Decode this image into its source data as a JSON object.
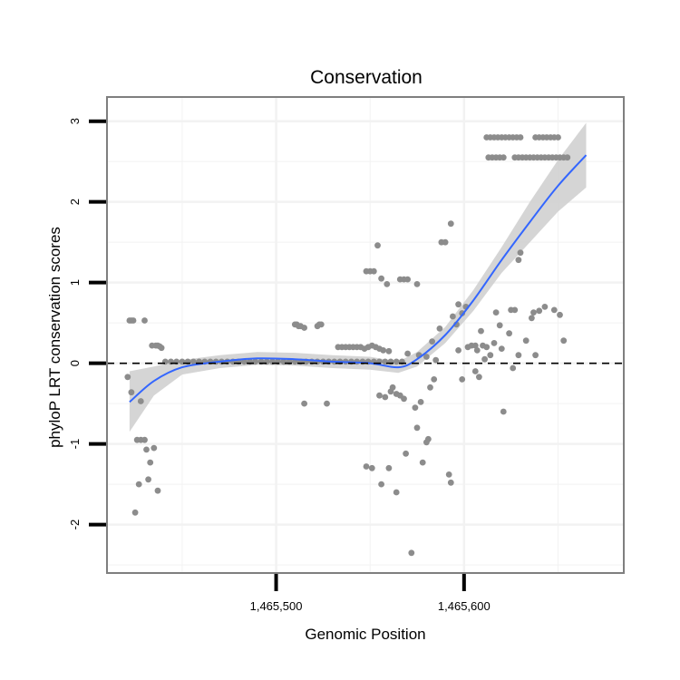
{
  "chart_data": {
    "type": "scatter",
    "title": "Conservation",
    "xlabel": "Genomic Position",
    "ylabel": "phyloP LRT conservation scores",
    "xlim": [
      1465410,
      1465685
    ],
    "ylim": [
      -2.6,
      3.3
    ],
    "x_ticks": [
      {
        "value": 1465500,
        "label": "1,465,500"
      },
      {
        "value": 1465600,
        "label": "1,465,600"
      }
    ],
    "y_ticks": [
      {
        "value": -2,
        "label": "-2"
      },
      {
        "value": -1,
        "label": "-1"
      },
      {
        "value": 0,
        "label": "0"
      },
      {
        "value": 1,
        "label": "1"
      },
      {
        "value": 2,
        "label": "2"
      },
      {
        "value": 3,
        "label": "3"
      }
    ],
    "x_minor_ticks": [
      1465450,
      1465550,
      1465650
    ],
    "y_minor_ticks": [
      -2.5,
      -1.5,
      -0.5,
      0.5,
      1.5,
      2.5
    ],
    "reference_line": {
      "y": 0,
      "style": "dashed"
    },
    "smooth": {
      "name": "Loess fit",
      "x": [
        1465422,
        1465435,
        1465450,
        1465470,
        1465490,
        1465510,
        1465530,
        1465550,
        1465565,
        1465575,
        1465590,
        1465605,
        1465620,
        1465635,
        1465650,
        1465665
      ],
      "y": [
        -0.48,
        -0.22,
        -0.05,
        0.02,
        0.06,
        0.05,
        0.02,
        0.0,
        -0.05,
        0.05,
        0.35,
        0.78,
        1.28,
        1.75,
        2.2,
        2.58
      ],
      "ci_lower": [
        -0.85,
        -0.4,
        -0.14,
        -0.06,
        -0.02,
        -0.03,
        -0.06,
        -0.08,
        -0.12,
        -0.04,
        0.25,
        0.65,
        1.12,
        1.5,
        1.88,
        2.18
      ],
      "ci_upper": [
        -0.1,
        -0.04,
        0.04,
        0.1,
        0.14,
        0.13,
        0.1,
        0.08,
        0.02,
        0.14,
        0.45,
        0.91,
        1.44,
        2.0,
        2.52,
        2.98
      ]
    },
    "points": [
      {
        "x": 1465421,
        "y": -0.17
      },
      {
        "x": 1465422,
        "y": 0.53
      },
      {
        "x": 1465423,
        "y": 0.53
      },
      {
        "x": 1465424,
        "y": 0.53
      },
      {
        "x": 1465423,
        "y": -0.36
      },
      {
        "x": 1465425,
        "y": -1.85
      },
      {
        "x": 1465426,
        "y": -0.95
      },
      {
        "x": 1465427,
        "y": -1.5
      },
      {
        "x": 1465428,
        "y": -0.47
      },
      {
        "x": 1465428,
        "y": -0.95
      },
      {
        "x": 1465430,
        "y": 0.53
      },
      {
        "x": 1465430,
        "y": -0.95
      },
      {
        "x": 1465431,
        "y": -1.07
      },
      {
        "x": 1465432,
        "y": -1.44
      },
      {
        "x": 1465433,
        "y": -1.23
      },
      {
        "x": 1465434,
        "y": 0.22
      },
      {
        "x": 1465435,
        "y": -1.05
      },
      {
        "x": 1465436,
        "y": 0.22
      },
      {
        "x": 1465437,
        "y": 0.22
      },
      {
        "x": 1465438,
        "y": 0.21
      },
      {
        "x": 1465439,
        "y": 0.19
      },
      {
        "x": 1465437,
        "y": -1.58
      },
      {
        "x": 1465441,
        "y": 0.02
      },
      {
        "x": 1465444,
        "y": 0.02
      },
      {
        "x": 1465447,
        "y": 0.02
      },
      {
        "x": 1465450,
        "y": 0.02
      },
      {
        "x": 1465453,
        "y": 0.02
      },
      {
        "x": 1465456,
        "y": 0.02
      },
      {
        "x": 1465459,
        "y": 0.02
      },
      {
        "x": 1465462,
        "y": 0.02
      },
      {
        "x": 1465465,
        "y": 0.02
      },
      {
        "x": 1465468,
        "y": 0.02
      },
      {
        "x": 1465471,
        "y": 0.02
      },
      {
        "x": 1465474,
        "y": 0.02
      },
      {
        "x": 1465477,
        "y": 0.02
      },
      {
        "x": 1465480,
        "y": 0.02
      },
      {
        "x": 1465483,
        "y": 0.02
      },
      {
        "x": 1465486,
        "y": 0.02
      },
      {
        "x": 1465489,
        "y": 0.02
      },
      {
        "x": 1465492,
        "y": 0.02
      },
      {
        "x": 1465495,
        "y": 0.02
      },
      {
        "x": 1465498,
        "y": 0.02
      },
      {
        "x": 1465501,
        "y": 0.02
      },
      {
        "x": 1465504,
        "y": 0.02
      },
      {
        "x": 1465507,
        "y": 0.02
      },
      {
        "x": 1465510,
        "y": 0.02
      },
      {
        "x": 1465513,
        "y": 0.02
      },
      {
        "x": 1465516,
        "y": 0.02
      },
      {
        "x": 1465519,
        "y": 0.02
      },
      {
        "x": 1465522,
        "y": 0.02
      },
      {
        "x": 1465525,
        "y": 0.02
      },
      {
        "x": 1465528,
        "y": 0.02
      },
      {
        "x": 1465531,
        "y": 0.02
      },
      {
        "x": 1465534,
        "y": 0.02
      },
      {
        "x": 1465537,
        "y": 0.02
      },
      {
        "x": 1465540,
        "y": 0.02
      },
      {
        "x": 1465543,
        "y": 0.02
      },
      {
        "x": 1465546,
        "y": 0.02
      },
      {
        "x": 1465549,
        "y": 0.02
      },
      {
        "x": 1465552,
        "y": 0.02
      },
      {
        "x": 1465555,
        "y": 0.02
      },
      {
        "x": 1465558,
        "y": 0.02
      },
      {
        "x": 1465561,
        "y": 0.02
      },
      {
        "x": 1465564,
        "y": 0.02
      },
      {
        "x": 1465567,
        "y": 0.02
      },
      {
        "x": 1465510,
        "y": 0.48
      },
      {
        "x": 1465511,
        "y": 0.48
      },
      {
        "x": 1465512,
        "y": 0.46
      },
      {
        "x": 1465513,
        "y": 0.46
      },
      {
        "x": 1465515,
        "y": 0.44
      },
      {
        "x": 1465522,
        "y": 0.46
      },
      {
        "x": 1465523,
        "y": 0.48
      },
      {
        "x": 1465524,
        "y": 0.48
      },
      {
        "x": 1465515,
        "y": -0.5
      },
      {
        "x": 1465527,
        "y": -0.5
      },
      {
        "x": 1465533,
        "y": 0.2
      },
      {
        "x": 1465535,
        "y": 0.2
      },
      {
        "x": 1465537,
        "y": 0.2
      },
      {
        "x": 1465539,
        "y": 0.2
      },
      {
        "x": 1465541,
        "y": 0.2
      },
      {
        "x": 1465543,
        "y": 0.2
      },
      {
        "x": 1465545,
        "y": 0.2
      },
      {
        "x": 1465547,
        "y": 0.18
      },
      {
        "x": 1465549,
        "y": 0.2
      },
      {
        "x": 1465551,
        "y": 0.22
      },
      {
        "x": 1465553,
        "y": 0.2
      },
      {
        "x": 1465555,
        "y": 0.18
      },
      {
        "x": 1465557,
        "y": 0.16
      },
      {
        "x": 1465560,
        "y": 0.15
      },
      {
        "x": 1465548,
        "y": 1.14
      },
      {
        "x": 1465550,
        "y": 1.14
      },
      {
        "x": 1465552,
        "y": 1.14
      },
      {
        "x": 1465554,
        "y": 1.46
      },
      {
        "x": 1465556,
        "y": 1.05
      },
      {
        "x": 1465559,
        "y": 0.98
      },
      {
        "x": 1465566,
        "y": 1.04
      },
      {
        "x": 1465568,
        "y": 1.04
      },
      {
        "x": 1465570,
        "y": 1.04
      },
      {
        "x": 1465575,
        "y": 0.98
      },
      {
        "x": 1465548,
        "y": -1.28
      },
      {
        "x": 1465551,
        "y": -1.3
      },
      {
        "x": 1465556,
        "y": -1.5
      },
      {
        "x": 1465560,
        "y": -1.3
      },
      {
        "x": 1465555,
        "y": -0.4
      },
      {
        "x": 1465558,
        "y": -0.42
      },
      {
        "x": 1465561,
        "y": -0.35
      },
      {
        "x": 1465562,
        "y": -0.3
      },
      {
        "x": 1465564,
        "y": -0.38
      },
      {
        "x": 1465566,
        "y": -0.4
      },
      {
        "x": 1465568,
        "y": -0.44
      },
      {
        "x": 1465564,
        "y": -1.6
      },
      {
        "x": 1465569,
        "y": -1.12
      },
      {
        "x": 1465570,
        "y": 0.12
      },
      {
        "x": 1465572,
        "y": -2.35
      },
      {
        "x": 1465574,
        "y": -0.55
      },
      {
        "x": 1465575,
        "y": -0.8
      },
      {
        "x": 1465576,
        "y": 0.1
      },
      {
        "x": 1465577,
        "y": -0.48
      },
      {
        "x": 1465578,
        "y": -1.23
      },
      {
        "x": 1465580,
        "y": -0.98
      },
      {
        "x": 1465581,
        "y": -0.94
      },
      {
        "x": 1465580,
        "y": 0.08
      },
      {
        "x": 1465582,
        "y": -0.3
      },
      {
        "x": 1465583,
        "y": 0.27
      },
      {
        "x": 1465584,
        "y": -0.2
      },
      {
        "x": 1465585,
        "y": 0.04
      },
      {
        "x": 1465587,
        "y": 0.43
      },
      {
        "x": 1465588,
        "y": 1.5
      },
      {
        "x": 1465590,
        "y": 1.5
      },
      {
        "x": 1465592,
        "y": -1.38
      },
      {
        "x": 1465593,
        "y": -1.48
      },
      {
        "x": 1465593,
        "y": 1.73
      },
      {
        "x": 1465594,
        "y": 0.58
      },
      {
        "x": 1465596,
        "y": 0.48
      },
      {
        "x": 1465597,
        "y": 0.73
      },
      {
        "x": 1465597,
        "y": 0.16
      },
      {
        "x": 1465599,
        "y": -0.2
      },
      {
        "x": 1465599,
        "y": 0.62
      },
      {
        "x": 1465601,
        "y": 0.7
      },
      {
        "x": 1465602,
        "y": 0.2
      },
      {
        "x": 1465604,
        "y": 0.22
      },
      {
        "x": 1465606,
        "y": 0.22
      },
      {
        "x": 1465606,
        "y": -0.1
      },
      {
        "x": 1465607,
        "y": 0.16
      },
      {
        "x": 1465608,
        "y": -0.17
      },
      {
        "x": 1465609,
        "y": 0.4
      },
      {
        "x": 1465610,
        "y": 0.22
      },
      {
        "x": 1465611,
        "y": 0.05
      },
      {
        "x": 1465612,
        "y": 0.2
      },
      {
        "x": 1465614,
        "y": 0.1
      },
      {
        "x": 1465616,
        "y": 0.25
      },
      {
        "x": 1465617,
        "y": 0.63
      },
      {
        "x": 1465619,
        "y": 0.47
      },
      {
        "x": 1465620,
        "y": 0.18
      },
      {
        "x": 1465621,
        "y": -0.6
      },
      {
        "x": 1465624,
        "y": 0.37
      },
      {
        "x": 1465625,
        "y": 0.66
      },
      {
        "x": 1465627,
        "y": 0.66
      },
      {
        "x": 1465626,
        "y": -0.06
      },
      {
        "x": 1465629,
        "y": 1.28
      },
      {
        "x": 1465630,
        "y": 1.37
      },
      {
        "x": 1465629,
        "y": 0.1
      },
      {
        "x": 1465633,
        "y": 0.28
      },
      {
        "x": 1465636,
        "y": 0.56
      },
      {
        "x": 1465637,
        "y": 0.63
      },
      {
        "x": 1465638,
        "y": 0.1
      },
      {
        "x": 1465640,
        "y": 0.65
      },
      {
        "x": 1465643,
        "y": 0.7
      },
      {
        "x": 1465648,
        "y": 0.66
      },
      {
        "x": 1465651,
        "y": 0.6
      },
      {
        "x": 1465653,
        "y": 0.28
      },
      {
        "x": 1465612,
        "y": 2.8
      },
      {
        "x": 1465614,
        "y": 2.8
      },
      {
        "x": 1465616,
        "y": 2.8
      },
      {
        "x": 1465618,
        "y": 2.8
      },
      {
        "x": 1465620,
        "y": 2.8
      },
      {
        "x": 1465622,
        "y": 2.8
      },
      {
        "x": 1465624,
        "y": 2.8
      },
      {
        "x": 1465626,
        "y": 2.8
      },
      {
        "x": 1465628,
        "y": 2.8
      },
      {
        "x": 1465630,
        "y": 2.8
      },
      {
        "x": 1465638,
        "y": 2.8
      },
      {
        "x": 1465640,
        "y": 2.8
      },
      {
        "x": 1465642,
        "y": 2.8
      },
      {
        "x": 1465644,
        "y": 2.8
      },
      {
        "x": 1465646,
        "y": 2.8
      },
      {
        "x": 1465648,
        "y": 2.8
      },
      {
        "x": 1465650,
        "y": 2.8
      },
      {
        "x": 1465613,
        "y": 2.55
      },
      {
        "x": 1465615,
        "y": 2.55
      },
      {
        "x": 1465617,
        "y": 2.55
      },
      {
        "x": 1465619,
        "y": 2.55
      },
      {
        "x": 1465621,
        "y": 2.55
      },
      {
        "x": 1465627,
        "y": 2.55
      },
      {
        "x": 1465629,
        "y": 2.55
      },
      {
        "x": 1465631,
        "y": 2.55
      },
      {
        "x": 1465633,
        "y": 2.55
      },
      {
        "x": 1465635,
        "y": 2.55
      },
      {
        "x": 1465637,
        "y": 2.55
      },
      {
        "x": 1465639,
        "y": 2.55
      },
      {
        "x": 1465641,
        "y": 2.55
      },
      {
        "x": 1465643,
        "y": 2.55
      },
      {
        "x": 1465645,
        "y": 2.55
      },
      {
        "x": 1465647,
        "y": 2.55
      },
      {
        "x": 1465649,
        "y": 2.55
      },
      {
        "x": 1465651,
        "y": 2.55
      },
      {
        "x": 1465653,
        "y": 2.55
      },
      {
        "x": 1465655,
        "y": 2.55
      }
    ],
    "colors": {
      "points": "#8c8c8c",
      "smooth_line": "#3366ff",
      "ci_band": "#d0d0d0",
      "panel_border": "#7f7f7f",
      "grid": "#f2f2f2",
      "axis": "#000000"
    }
  }
}
